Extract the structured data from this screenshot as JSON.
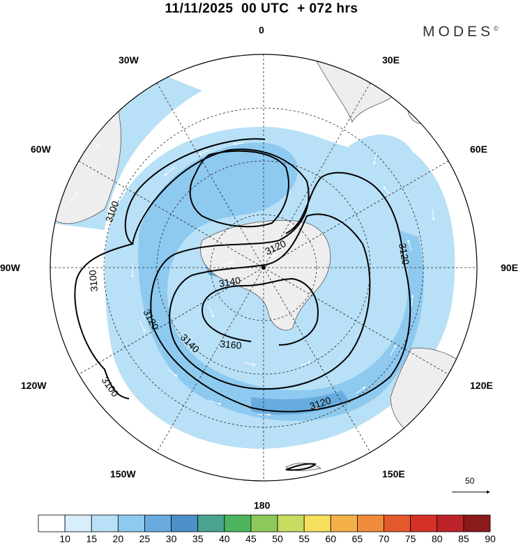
{
  "title": "11/11/2025  00 UTC  + 072 hrs",
  "brand": "MODES",
  "brand_mark": "©",
  "longitude_labels": [
    "0",
    "30E",
    "60E",
    "90E",
    "120E",
    "150E",
    "180",
    "150W",
    "120W",
    "90W",
    "60W",
    "30W"
  ],
  "contour_labels": [
    "3100",
    "3100",
    "3100",
    "3120",
    "3120",
    "3120",
    "3120",
    "3140",
    "3140",
    "3160"
  ],
  "reference_vector": {
    "value": "50"
  },
  "colorbar": {
    "ticks": [
      "10",
      "15",
      "20",
      "25",
      "30",
      "35",
      "40",
      "45",
      "50",
      "55",
      "60",
      "65",
      "70",
      "75",
      "80",
      "85",
      "90"
    ],
    "colors": [
      "#ffffff",
      "#d9eefb",
      "#b8e0f6",
      "#8ec9ef",
      "#68acdf",
      "#4c8fc9",
      "#4aa38f",
      "#4cb55e",
      "#8dc95a",
      "#c8dc62",
      "#f5df5c",
      "#f4b14a",
      "#ef8b3a",
      "#e55a2c",
      "#d73027",
      "#bd2229",
      "#8b1a1a"
    ]
  },
  "colors": {
    "land": "#eeeeee",
    "coast": "#555555",
    "contour": "#000000",
    "vector": "#ffffff"
  }
}
